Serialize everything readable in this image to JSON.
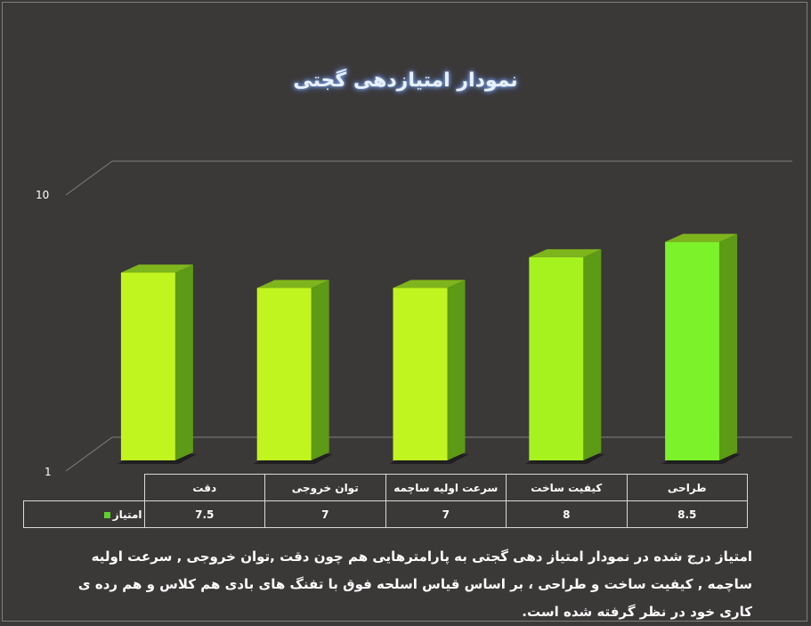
{
  "chart_data": {
    "type": "bar",
    "title": "نمودار امتیازدهی گجتی",
    "categories": [
      "دقت",
      "توان خروجی",
      "سرعت اولیه ساچمه",
      "کیفیت ساخت",
      "طراحی"
    ],
    "series": [
      {
        "name": "امتیاز",
        "values": [
          7.5,
          7,
          7,
          8,
          8.5
        ]
      }
    ],
    "value_labels": [
      "7.5",
      "7",
      "7",
      "8",
      "8.5"
    ],
    "y_ticks": [
      "10",
      "1"
    ],
    "ylim": [
      1,
      10
    ],
    "bar_colors": [
      "#c1f51f",
      "#c1f51f",
      "#c1f51f",
      "#a6f21f",
      "#7cf22b"
    ],
    "legend_color": "#5fd22b",
    "grid": false,
    "style": "3d-column"
  },
  "description": "امتیاز درج شده در نمودار امتیاز دهی گجتی  به پارامترهایی هم چون دقت ,توان خروجی , سرعت اولیه ساچمه , کیفیت ساخت و طراحی ، بر اساس قیاس اسلحه فوق با تفنگ های بادی هم کلاس و هم رده ی کاری خود در نظر گرفته شده است."
}
